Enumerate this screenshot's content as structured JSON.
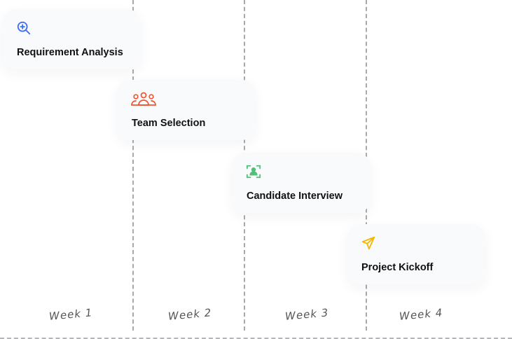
{
  "steps": [
    {
      "title": "Requirement Analysis",
      "icon": "zoom-in-search-icon",
      "color": "#3b6ef5"
    },
    {
      "title": "Team Selection",
      "icon": "team-users-icon",
      "color": "#f0552d"
    },
    {
      "title": "Candidate Interview",
      "icon": "face-scan-user-icon",
      "color": "#4fc07a"
    },
    {
      "title": "Project Kickoff",
      "icon": "send-paper-plane-icon",
      "color": "#f5b800"
    }
  ],
  "weeks": [
    "Week 1",
    "Week 2",
    "Week 3",
    "Week 4"
  ]
}
